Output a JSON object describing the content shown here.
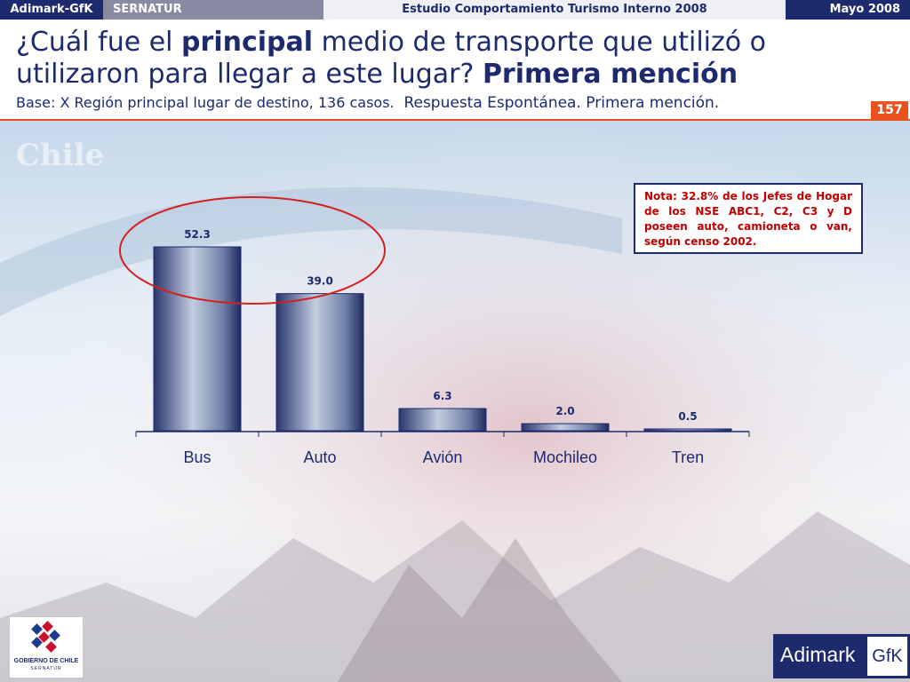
{
  "header": {
    "company": "Adimark-GfK",
    "client": "SERNATUR",
    "study": "Estudio Comportamiento Turismo Interno 2008",
    "date": "Mayo 2008"
  },
  "title": {
    "part1": "¿Cuál fue el ",
    "bold1": "principal",
    "part2": " medio de transporte que utilizó o utilizaron para llegar a este lugar? ",
    "bold2": "Primera mención"
  },
  "subtitle": {
    "base": "Base: X Región principal lugar de destino, 136 casos.",
    "response": "Respuesta Espontánea. Primera mención."
  },
  "page_number": "157",
  "note": "Nota: 32.8% de los Jefes de Hogar de los NSE ABC1, C2, C3 y D poseen auto, camioneta o van, según censo 2002.",
  "logos": {
    "gobierno_line1": "GOBIERNO DE CHILE",
    "gobierno_line2": "SERNATUR",
    "adimark_word": "Adimark",
    "gfk_word": "GfK"
  },
  "colors": {
    "navy": "#1e2a6e",
    "accent": "#e8521e",
    "note_text": "#c00000",
    "highlight_ellipse": "#d42020"
  },
  "chart_data": {
    "type": "bar",
    "categories": [
      "Bus",
      "Auto",
      "Avión",
      "Mochileo",
      "Tren"
    ],
    "values": [
      52.3,
      39.0,
      6.3,
      2.0,
      0.5
    ],
    "value_labels": [
      "52.3",
      "39.0",
      "6.3",
      "2.0",
      "0.5"
    ],
    "ylim": [
      0,
      55
    ],
    "highlighted": [
      "Bus",
      "Auto"
    ],
    "grid": false,
    "legend": "none"
  }
}
